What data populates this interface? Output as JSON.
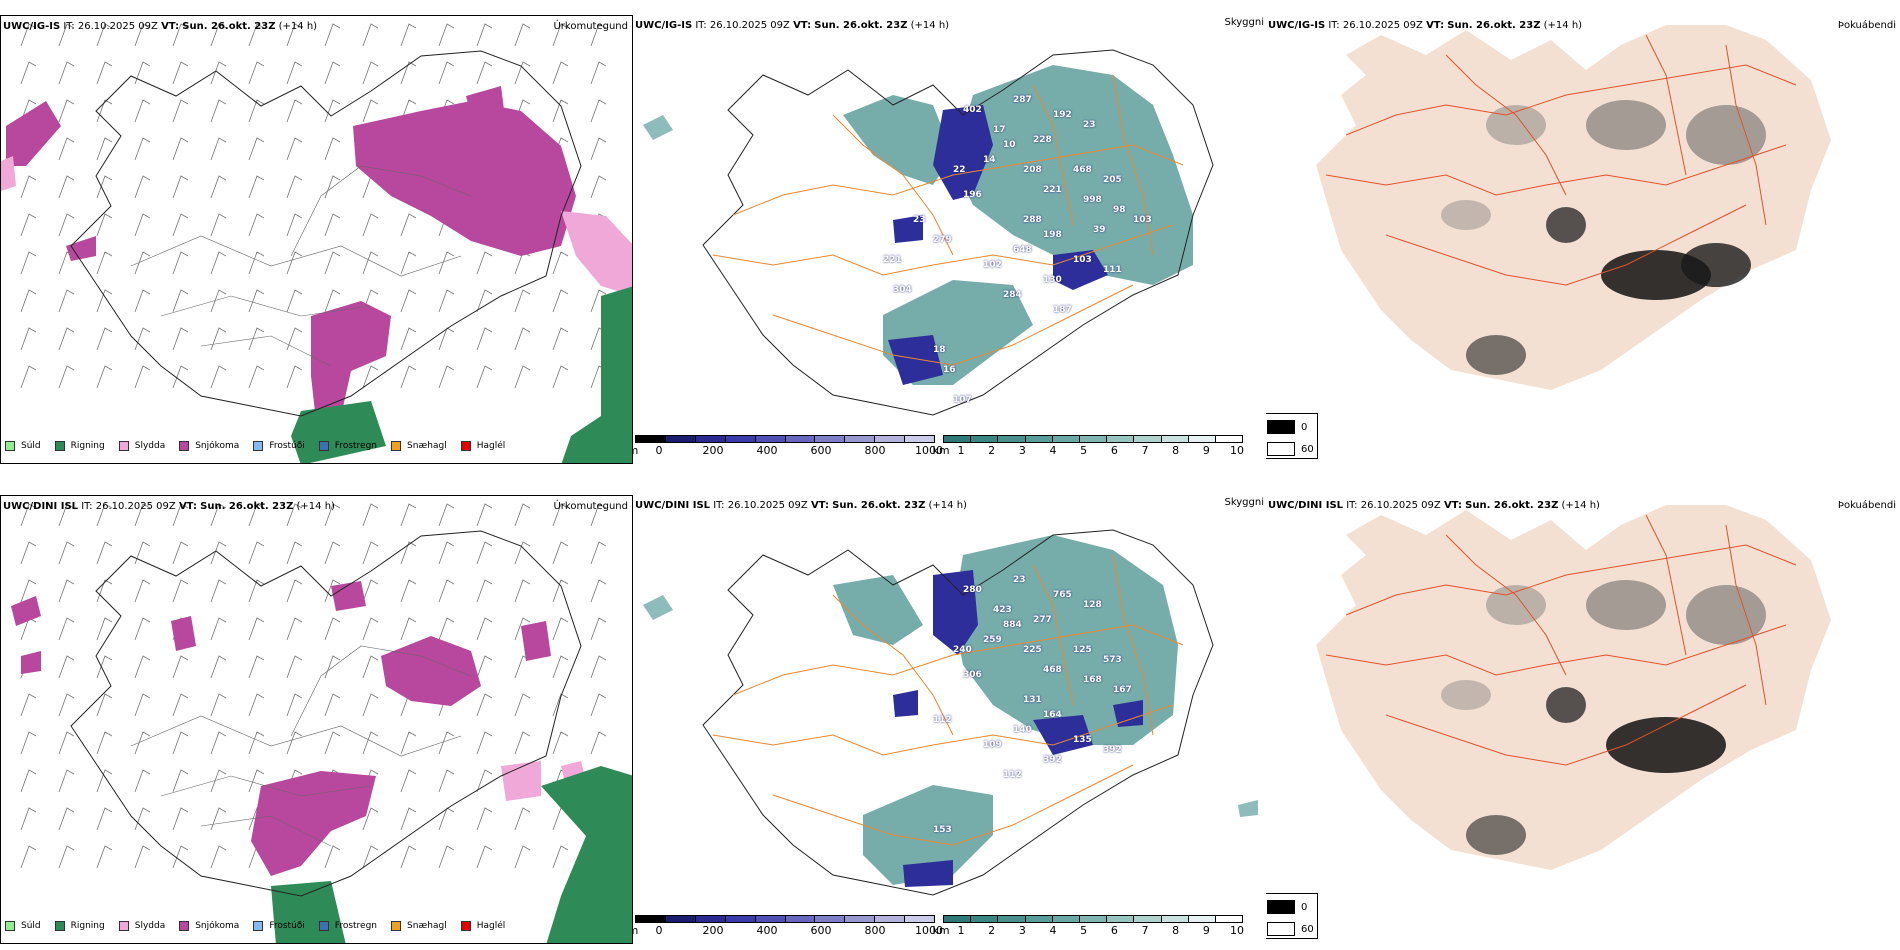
{
  "rows": [
    {
      "model": "UWC/IG-IS",
      "it_label": "IT:",
      "it_value": "26.10.2025 09Z",
      "vt_label": "VT:",
      "vt_value": "Sun. 26.okt. 23Z",
      "lead": "(+14 h)",
      "ptype_title": "Úrkomutegund",
      "vis_title": "Skyggni",
      "fog_title": "Þokuábendi",
      "cloud_labels": [
        "402",
        "287",
        "192",
        "23",
        "17",
        "10",
        "228",
        "14",
        "208",
        "468",
        "205",
        "22",
        "221",
        "998",
        "196",
        "98",
        "288",
        "198",
        "279",
        "648",
        "102",
        "103",
        "111",
        "130",
        "284",
        "18",
        "16",
        "107",
        "304",
        "187",
        "221",
        "39",
        "103",
        "23"
      ]
    },
    {
      "model": "UWC/DINI ISL",
      "it_label": "IT:",
      "it_value": "26.10.2025 09Z",
      "vt_label": "VT:",
      "vt_value": "Sun. 26.okt. 23Z",
      "lead": "(+14 h)",
      "ptype_title": "Úrkomutegund",
      "vis_title": "Skyggni",
      "fog_title": "Þokuábendi",
      "cloud_labels": [
        "280",
        "23",
        "765",
        "128",
        "423",
        "884",
        "277",
        "259",
        "225",
        "125",
        "573",
        "240",
        "468",
        "168",
        "306",
        "167",
        "131",
        "164",
        "112",
        "140",
        "109",
        "135",
        "392",
        "392",
        "112",
        "153"
      ]
    }
  ],
  "ptype_legend": [
    {
      "label": "Súld",
      "color": "#90ee90"
    },
    {
      "label": "Rigning",
      "color": "#2e8b57"
    },
    {
      "label": "Slydda",
      "color": "#f0a8d8"
    },
    {
      "label": "Snjókoma",
      "color": "#b8479e"
    },
    {
      "label": "Frostúði",
      "color": "#87b8f0"
    },
    {
      "label": "Frostregn",
      "color": "#3f6fb5"
    },
    {
      "label": "Snæhagl",
      "color": "#f0a020"
    },
    {
      "label": "Haglél",
      "color": "#e00000"
    }
  ],
  "cloud_colorbar": {
    "unit": "m",
    "ticks": [
      "0",
      "200",
      "400",
      "600",
      "800",
      "1000"
    ],
    "colors": [
      "#000000",
      "#1c1c6e",
      "#2a2a90",
      "#3a3aa8",
      "#5050b4",
      "#6767be",
      "#7f7fc8",
      "#9999d2",
      "#b3b3dc",
      "#ccccea"
    ]
  },
  "vis_colorbar": {
    "unit": "km",
    "ticks": [
      "1",
      "2",
      "3",
      "4",
      "5",
      "6",
      "7",
      "8",
      "9",
      "10"
    ],
    "colors": [
      "#2f7a78",
      "#3b8583",
      "#4a908e",
      "#5a9c99",
      "#6ba8a5",
      "#80b5b2",
      "#97c3c0",
      "#afd2cf",
      "#c9e2e0",
      "#e6f2f1",
      "#ffffff"
    ]
  },
  "fog_legend": [
    {
      "label": "0",
      "color": "#000000"
    },
    {
      "label": "60",
      "color": "#ffffff"
    }
  ],
  "colors": {
    "snow": "#b8479e",
    "rain": "#2e8b57",
    "sleet": "#f0a8d8",
    "vis_teal": "#5e9f9c",
    "cloud_blue": "#2e2e9a",
    "roads": "#e88830",
    "fog_land": "#f3e0d2",
    "fog_roads": "#e2522b"
  }
}
